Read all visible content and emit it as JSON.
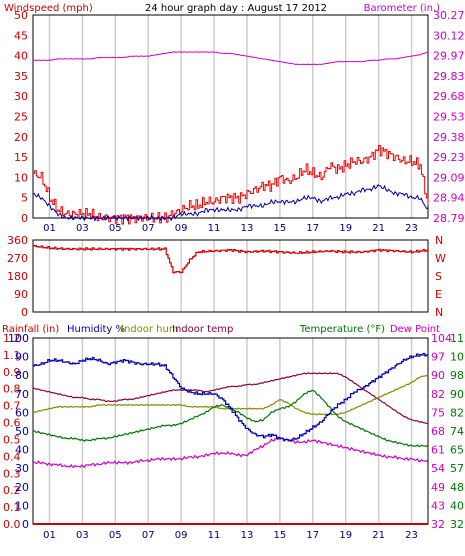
{
  "title": "24 hour graph day : August 17 2012",
  "x_ticks": [
    "01",
    "03",
    "05",
    "07",
    "09",
    "11",
    "13",
    "15",
    "17",
    "19",
    "21",
    "23"
  ],
  "colors": {
    "wind_axis": "#cc0000",
    "gust": "#ee0000",
    "wind_avg": "#0000aa",
    "baro": "#cc00cc",
    "winddir": "#cc0000",
    "rain": "#cc0000",
    "humidity": "#0000aa",
    "indoor_hum": "#888800",
    "indoor_temp": "#880044",
    "temp": "#007700",
    "dewpoint": "#cc00cc",
    "grid": "#cccccc"
  },
  "chart_data": [
    {
      "type": "line",
      "name": "wind_baro",
      "left_label": "Windspeed (mph)",
      "right_label": "Barometer (in.)",
      "left_ticks": [
        "0",
        "5",
        "10",
        "15",
        "20",
        "25",
        "30",
        "35",
        "40",
        "45",
        "50"
      ],
      "right_ticks": [
        "28.79",
        "28.94",
        "29.09",
        "29.23",
        "29.38",
        "29.53",
        "29.68",
        "29.83",
        "29.97",
        "30.12",
        "30.27"
      ],
      "ylim_left": [
        0,
        50
      ],
      "ylim_right": [
        28.79,
        30.27
      ],
      "x": [
        0,
        0.5,
        1,
        1.5,
        2,
        2.5,
        3,
        3.5,
        4,
        4.5,
        5,
        5.5,
        6,
        6.5,
        7,
        7.5,
        8,
        8.5,
        9,
        9.5,
        10,
        10.5,
        11,
        11.5,
        12,
        12.5,
        13,
        13.5,
        14,
        14.5,
        15,
        15.5,
        16,
        16.5,
        17,
        17.5,
        18,
        18.5,
        19,
        19.5,
        20,
        20.5,
        21,
        21.5,
        22,
        22.5,
        23,
        23.5,
        24
      ],
      "series": [
        {
          "key": "gust",
          "values": [
            11,
            10,
            5,
            2,
            1,
            1,
            1,
            1,
            0,
            0,
            0,
            0,
            0,
            0,
            0,
            0,
            0,
            1,
            2,
            3,
            3,
            4,
            4,
            5,
            5,
            5,
            6,
            7,
            8,
            8,
            10,
            9,
            10,
            12,
            11,
            10,
            13,
            12,
            13,
            14,
            14,
            15,
            17,
            16,
            15,
            14,
            14,
            13,
            3
          ]
        },
        {
          "key": "wind_avg",
          "values": [
            6,
            5,
            3,
            1,
            0,
            0,
            0,
            0,
            0,
            0,
            0,
            0,
            0,
            0,
            0,
            0,
            0,
            0,
            1,
            1,
            1,
            2,
            2,
            2,
            2,
            2,
            3,
            3,
            3,
            4,
            4,
            4,
            4,
            5,
            5,
            4,
            5,
            5,
            6,
            6,
            7,
            7,
            8,
            7,
            6,
            6,
            5,
            5,
            2
          ]
        },
        {
          "key": "baro",
          "values": [
            29.94,
            29.94,
            29.94,
            29.95,
            29.95,
            29.95,
            29.95,
            29.95,
            29.96,
            29.96,
            29.96,
            29.96,
            29.97,
            29.97,
            29.97,
            29.98,
            29.99,
            30.0,
            30.0,
            30.0,
            30.0,
            30.0,
            30.0,
            29.99,
            29.99,
            29.98,
            29.97,
            29.96,
            29.95,
            29.94,
            29.93,
            29.92,
            29.91,
            29.91,
            29.91,
            29.91,
            29.92,
            29.93,
            29.93,
            29.93,
            29.93,
            29.94,
            29.94,
            29.95,
            29.95,
            29.96,
            29.97,
            29.98,
            30.0
          ]
        }
      ]
    },
    {
      "type": "line",
      "name": "wind_direction",
      "left_ticks": [
        "0",
        "90",
        "180",
        "270",
        "360"
      ],
      "right_ticks": [
        "N",
        "E",
        "S",
        "W",
        "N"
      ],
      "ylim_left": [
        0,
        360
      ],
      "x": [
        0,
        1,
        2,
        3,
        4,
        5,
        6,
        7,
        8,
        8.5,
        9,
        9.5,
        10,
        11,
        12,
        13,
        14,
        15,
        16,
        17,
        18,
        19,
        20,
        21,
        22,
        23,
        24
      ],
      "series": [
        {
          "key": "winddir",
          "values": [
            330,
            320,
            315,
            315,
            315,
            315,
            315,
            315,
            315,
            200,
            200,
            260,
            300,
            305,
            310,
            300,
            305,
            300,
            295,
            300,
            305,
            300,
            300,
            310,
            305,
            300,
            310
          ]
        }
      ]
    },
    {
      "type": "line",
      "name": "rain_humidity_temp",
      "legend": [
        {
          "key": "rain",
          "label": "Rainfall (in)"
        },
        {
          "key": "humidity",
          "label": "Humidity %"
        },
        {
          "key": "indoor_hum",
          "label": "Indoor hum"
        },
        {
          "key": "indoor_temp",
          "label": "Indoor temp"
        },
        {
          "key": "temp",
          "label": "Temperature (°F)"
        },
        {
          "key": "dewpoint",
          "label": "Dew Point"
        }
      ],
      "rain_ticks": [
        "0.0",
        "0.1",
        "0.2",
        "0.3",
        "0.4",
        "0.5",
        "0.6",
        "0.7",
        "0.8",
        "0.9",
        "1.1",
        "1.2"
      ],
      "hum_ticks": [
        "0",
        "10",
        "20",
        "30",
        "40",
        "50",
        "60",
        "70",
        "80",
        "90",
        "100"
      ],
      "temp_ticks_a": [
        "32",
        "43",
        "49",
        "54",
        "61",
        "68",
        "75",
        "82",
        "90",
        "97",
        "104"
      ],
      "temp_ticks_b": [
        "32",
        "40",
        "48",
        "57",
        "65",
        "74",
        "82",
        "90",
        "98",
        "107",
        "115"
      ],
      "ylim_hum": [
        0,
        100
      ],
      "x": [
        0,
        0.5,
        1,
        1.5,
        2,
        2.5,
        3,
        3.5,
        4,
        4.5,
        5,
        5.5,
        6,
        6.5,
        7,
        7.5,
        8,
        8.5,
        9,
        9.5,
        10,
        10.5,
        11,
        11.5,
        12,
        12.5,
        13,
        13.5,
        14,
        14.5,
        15,
        15.5,
        16,
        16.5,
        17,
        17.5,
        18,
        18.5,
        19,
        19.5,
        20,
        20.5,
        21,
        21.5,
        22,
        22.5,
        23,
        23.5,
        24
      ],
      "series": [
        {
          "key": "humidity",
          "values": [
            85,
            86,
            88,
            88,
            87,
            86,
            88,
            89,
            88,
            86,
            87,
            88,
            87,
            86,
            86,
            86,
            85,
            79,
            73,
            71,
            70,
            70,
            70,
            67,
            62,
            56,
            51,
            48,
            47,
            48,
            46,
            45,
            46,
            49,
            52,
            55,
            60,
            64,
            67,
            71,
            73,
            76,
            79,
            82,
            85,
            88,
            90,
            91,
            91
          ]
        },
        {
          "key": "indoor_hum",
          "values": [
            60,
            61,
            62,
            63,
            63,
            63,
            63,
            63,
            64,
            64,
            64,
            64,
            64,
            64,
            64,
            64,
            64,
            64,
            64,
            63,
            63,
            63,
            63,
            62,
            62,
            62,
            62,
            62,
            62,
            64,
            67,
            65,
            62,
            60,
            59,
            59,
            59,
            59,
            60,
            62,
            64,
            66,
            68,
            70,
            72,
            74,
            76,
            79,
            80
          ]
        },
        {
          "key": "indoor_temp",
          "values": [
            73,
            72,
            71,
            70,
            69,
            68,
            68,
            67,
            67,
            66,
            66,
            67,
            67,
            68,
            69,
            70,
            71,
            72,
            72,
            72,
            72,
            71,
            72,
            73,
            74,
            74,
            75,
            75,
            76,
            77,
            78,
            79,
            80,
            81,
            81,
            81,
            81,
            81,
            79,
            76,
            73,
            70,
            67,
            64,
            61,
            58,
            56,
            55,
            54
          ]
        },
        {
          "key": "temp",
          "values": [
            50,
            49,
            48,
            47,
            46,
            46,
            45,
            45,
            46,
            46,
            47,
            48,
            49,
            50,
            51,
            52,
            53,
            53,
            54,
            56,
            58,
            60,
            63,
            64,
            62,
            60,
            57,
            55,
            56,
            60,
            62,
            63,
            66,
            70,
            72,
            68,
            63,
            58,
            55,
            53,
            51,
            49,
            47,
            45,
            44,
            43,
            42,
            42,
            42
          ]
        },
        {
          "key": "dewpoint",
          "values": [
            33,
            33,
            32,
            32,
            31,
            31,
            31,
            32,
            32,
            33,
            33,
            33,
            33,
            34,
            34,
            35,
            35,
            35,
            35,
            36,
            36,
            37,
            38,
            38,
            38,
            37,
            37,
            40,
            42,
            45,
            46,
            45,
            44,
            44,
            45,
            44,
            43,
            42,
            41,
            40,
            39,
            38,
            37,
            36,
            36,
            35,
            35,
            34,
            34
          ]
        },
        {
          "key": "rain",
          "values": [
            0,
            0,
            0,
            0,
            0,
            0,
            0,
            0,
            0,
            0,
            0,
            0,
            0,
            0,
            0,
            0,
            0,
            0,
            0,
            0,
            0,
            0,
            0,
            0,
            0,
            0,
            0,
            0,
            0,
            0,
            0,
            0,
            0,
            0,
            0,
            0,
            0,
            0,
            0,
            0,
            0,
            0,
            0,
            0,
            0,
            0,
            0,
            0,
            0
          ]
        }
      ]
    }
  ]
}
